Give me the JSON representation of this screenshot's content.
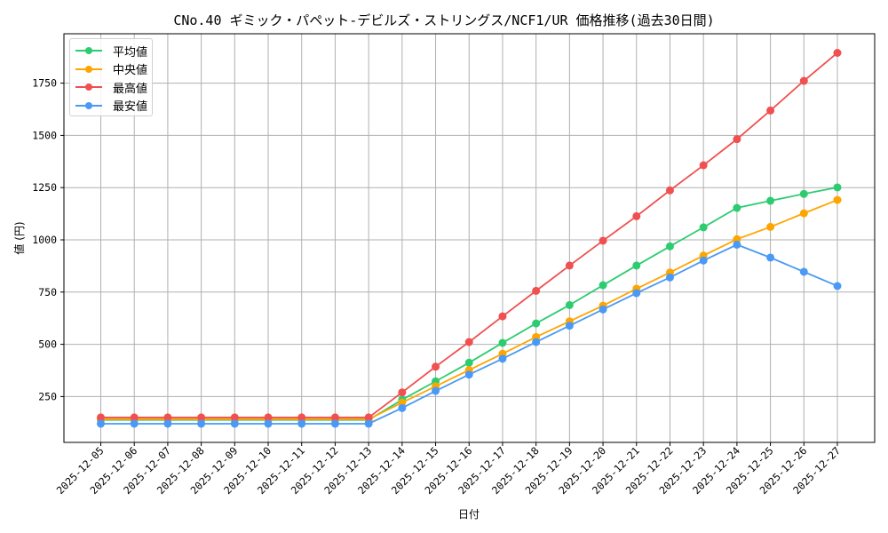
{
  "chart_data": {
    "type": "line",
    "title": "CNo.40 ギミック・パペット-デビルズ・ストリングス/NCF1/UR 価格推移(過去30日間)",
    "xlabel": "日付",
    "ylabel": "値 (円)",
    "ylim": [
      30,
      1960
    ],
    "yticks": [
      250,
      500,
      750,
      1000,
      1250,
      1500,
      1750
    ],
    "grid": true,
    "legend_position": "upper left",
    "categories": [
      "2025-12-05",
      "2025-12-06",
      "2025-12-07",
      "2025-12-08",
      "2025-12-09",
      "2025-12-10",
      "2025-12-11",
      "2025-12-12",
      "2025-12-13",
      "2025-12-14",
      "2025-12-15",
      "2025-12-16",
      "2025-12-17",
      "2025-12-18",
      "2025-12-19",
      "2025-12-20",
      "2025-12-21",
      "2025-12-22",
      "2025-12-23",
      "2025-12-24",
      "2025-12-25",
      "2025-12-26",
      "2025-12-27"
    ],
    "series": [
      {
        "name": "平均値",
        "color": "#2ecc71",
        "values": [
          138,
          138,
          138,
          138,
          138,
          138,
          138,
          138,
          138,
          235,
          323,
          412,
          507,
          600,
          688,
          783,
          877,
          969,
          1060,
          1153,
          1187,
          1220,
          1251
        ]
      },
      {
        "name": "中央値",
        "color": "#ffa500",
        "values": [
          142,
          142,
          142,
          142,
          142,
          142,
          142,
          142,
          142,
          221,
          299,
          377,
          455,
          535,
          610,
          685,
          766,
          844,
          925,
          1003,
          1062,
          1127,
          1191
        ]
      },
      {
        "name": "最高値",
        "color": "#f05050",
        "values": [
          150,
          150,
          150,
          150,
          150,
          150,
          150,
          150,
          150,
          270,
          393,
          511,
          634,
          756,
          877,
          996,
          1113,
          1237,
          1357,
          1482,
          1619,
          1761,
          1895
        ]
      },
      {
        "name": "最安値",
        "color": "#4a9af5",
        "values": [
          120,
          120,
          120,
          120,
          120,
          120,
          120,
          120,
          120,
          195,
          277,
          355,
          431,
          511,
          589,
          667,
          745,
          820,
          901,
          977,
          915,
          847,
          779
        ]
      }
    ]
  }
}
